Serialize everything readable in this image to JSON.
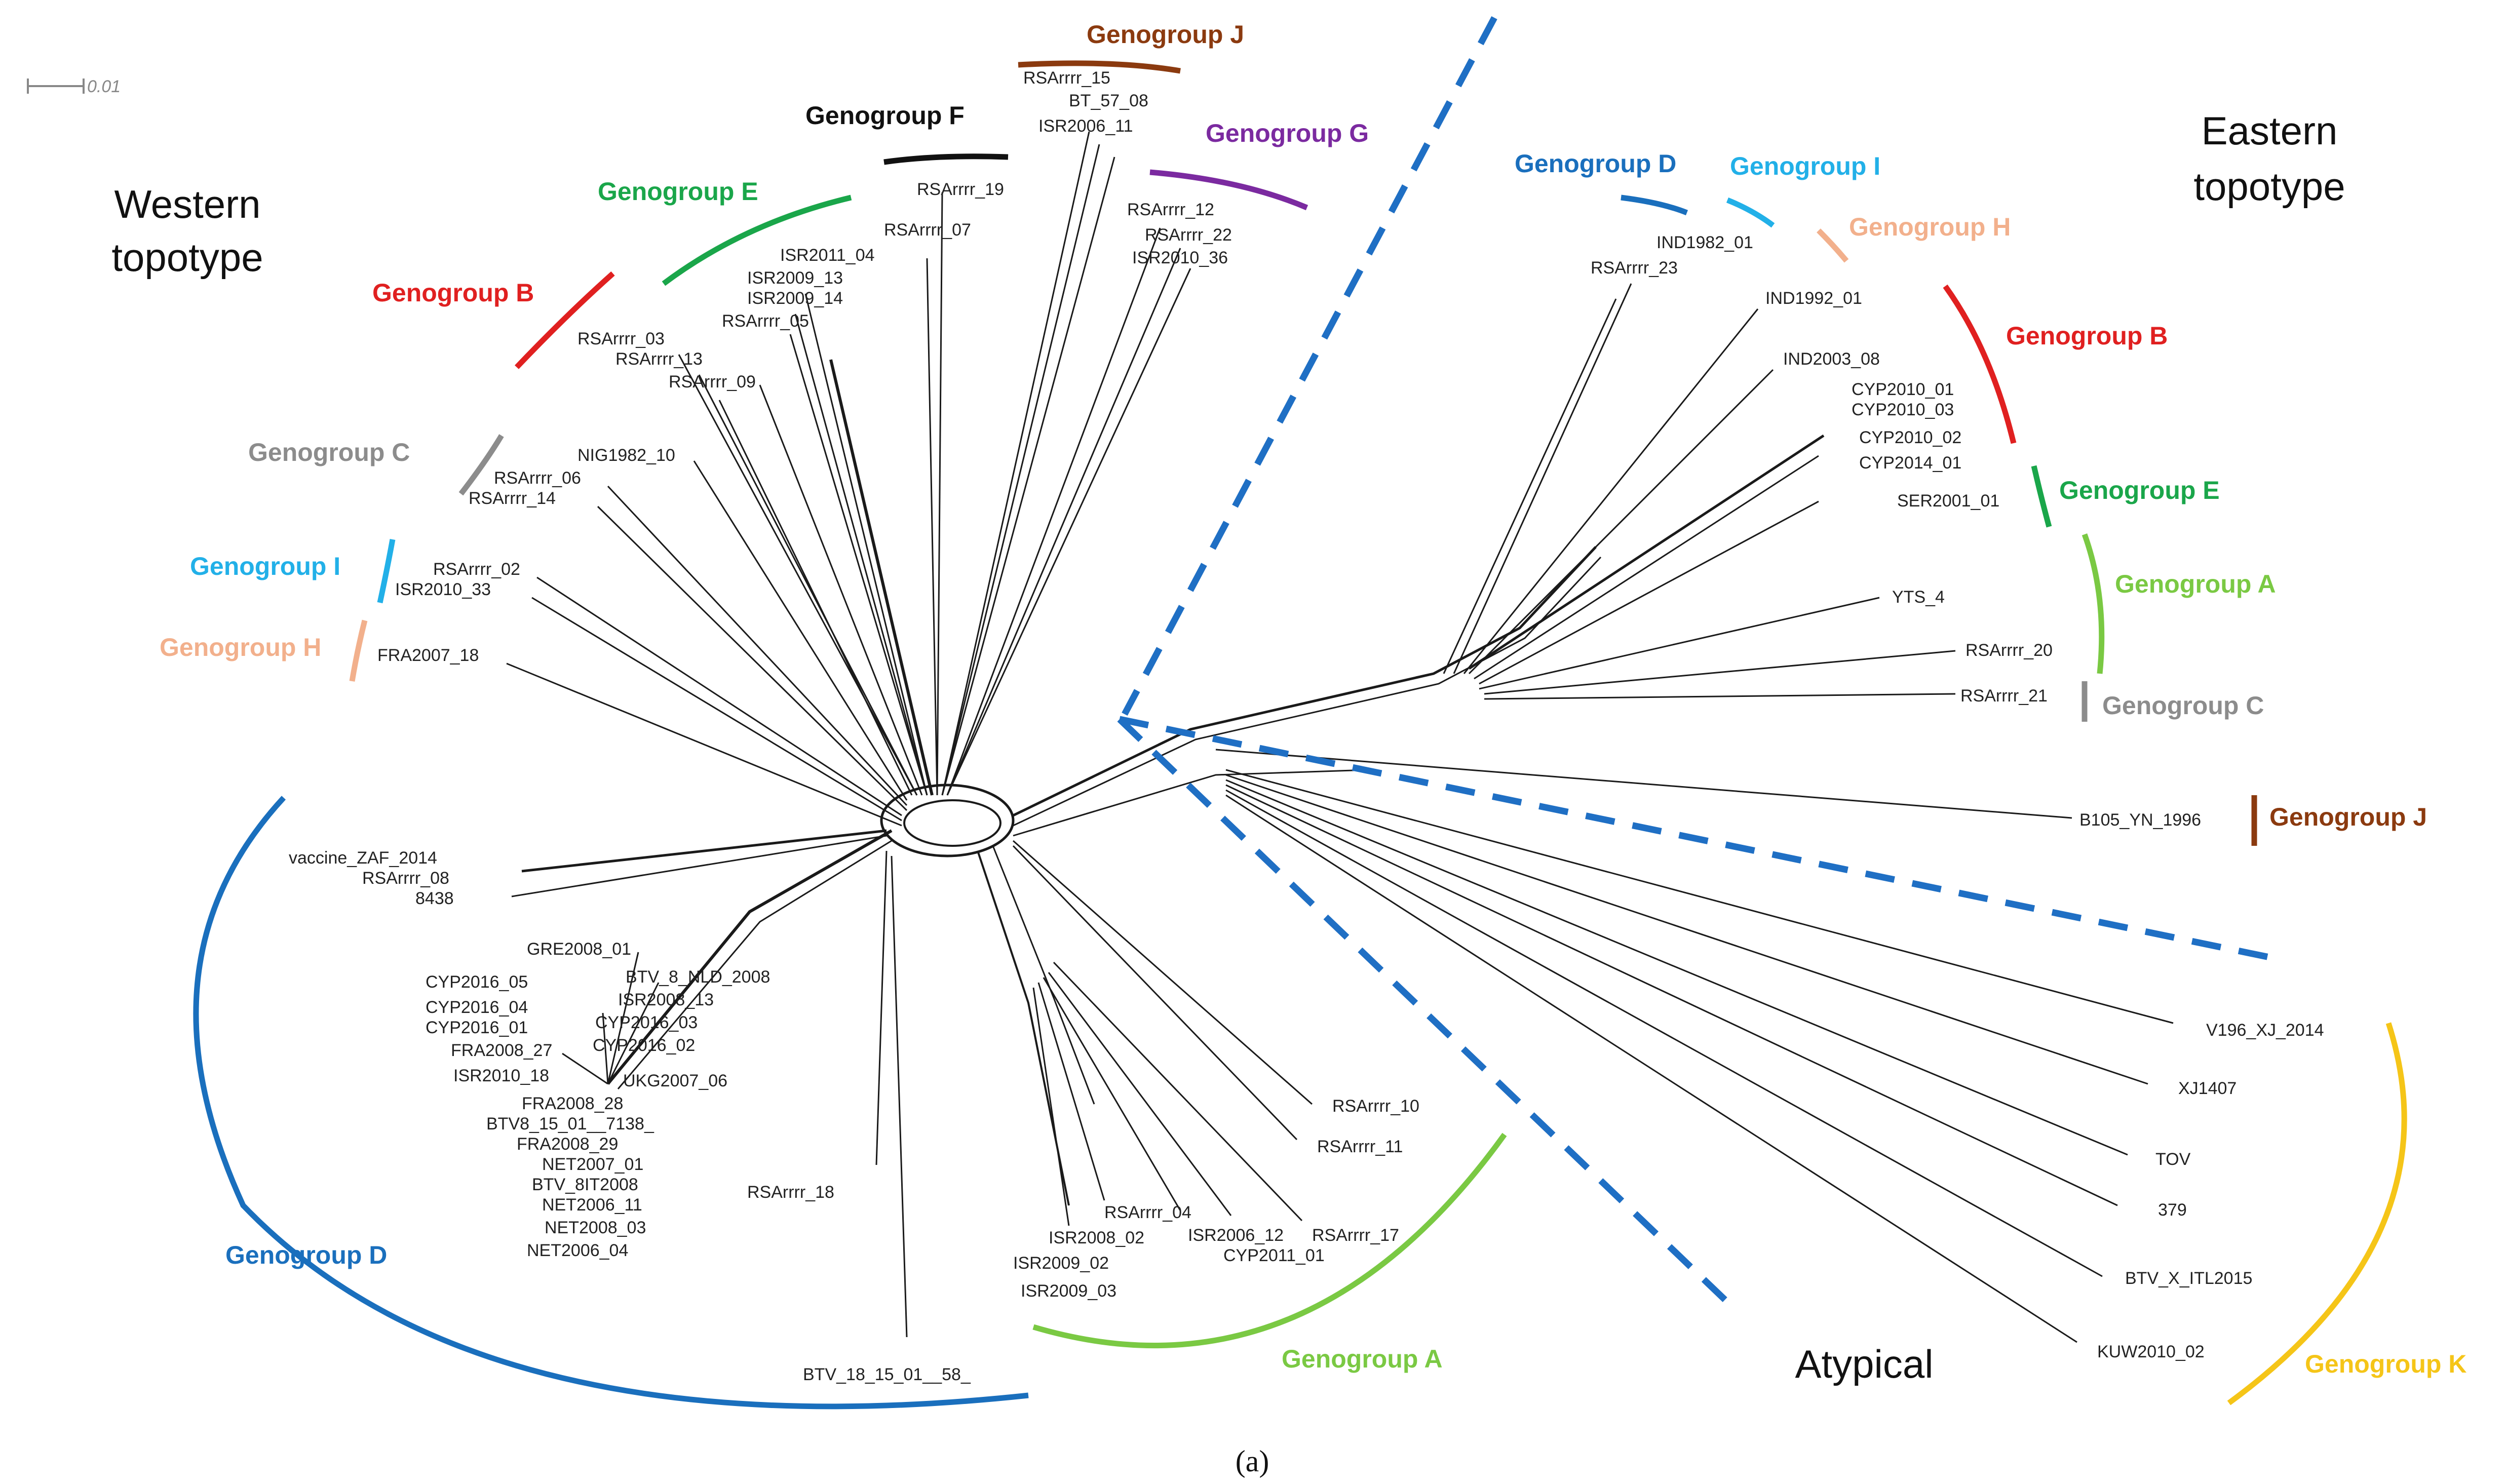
{
  "figure": {
    "caption": "(a)",
    "scale_bar_label": "0.01",
    "regions": {
      "western": [
        "Western",
        "topotype"
      ],
      "eastern": [
        "Eastern",
        "topotype"
      ],
      "atypical": "Atypical"
    }
  },
  "colors": {
    "A": "#7ac943",
    "B": "#e02020",
    "C": "#8c8c8c",
    "D": "#1a6fbd",
    "E": "#1aa64a",
    "F": "#111111",
    "G": "#7b2aa0",
    "H": "#f2b08c",
    "I": "#22b0e8",
    "J": "#8b3a0f",
    "K": "#f5c518",
    "divider": "#1f6fc4"
  },
  "genogroups": {
    "west_J": "Genogroup J",
    "west_F": "Genogroup F",
    "west_G": "Genogroup G",
    "west_E": "Genogroup E",
    "west_B": "Genogroup B",
    "west_C": "Genogroup C",
    "west_I": "Genogroup I",
    "west_H": "Genogroup H",
    "west_D": "Genogroup D",
    "west_A": "Genogroup A",
    "east_D": "Genogroup D",
    "east_I": "Genogroup I",
    "east_H": "Genogroup H",
    "east_B": "Genogroup B",
    "east_E": "Genogroup E",
    "east_A": "Genogroup A",
    "east_C": "Genogroup C",
    "east_J": "Genogroup J",
    "atyp_K": "Genogroup K"
  },
  "taxa": {
    "western_north": [
      "RSArrrr_15",
      "BT_57_08",
      "ISR2006_11",
      "RSArrrr_19",
      "RSArrrr_07",
      "RSArrrr_12",
      "RSArrrr_22",
      "ISR2010_36",
      "ISR2011_04",
      "ISR2009_13",
      "ISR2009_14",
      "RSArrrr_05",
      "RSArrrr_03",
      "RSArrrr_13",
      "RSArrrr_09",
      "NIG1982_10",
      "RSArrrr_06",
      "RSArrrr_14",
      "RSArrrr_02",
      "ISR2010_33",
      "FRA2007_18"
    ],
    "western_south": [
      "vaccine_ZAF_2014",
      "RSArrrr_08",
      "8438",
      "GRE2008_01",
      "CYP2016_05",
      "BTV_8_NLD_2008",
      "ISR2008_13",
      "CYP2016_04",
      "CYP2016_03",
      "CYP2016_01",
      "CYP2016_02",
      "FRA2008_27",
      "ISR2010_18",
      "UKG2007_06",
      "FRA2008_28",
      "BTV8_15_01__7138_",
      "FRA2008_29",
      "NET2007_01",
      "BTV_8IT2008",
      "NET2006_11",
      "NET2008_03",
      "NET2006_04",
      "RSArrrr_18",
      "BTV_18_15_01__58_",
      "RSArrrr_10",
      "RSArrrr_11",
      "RSArrrr_04",
      "ISR2008_02",
      "ISR2006_12",
      "RSArrrr_17",
      "ISR2009_02",
      "CYP2011_01",
      "ISR2009_03"
    ],
    "eastern": [
      "IND1982_01",
      "RSArrrr_23",
      "IND1992_01",
      "IND2003_08",
      "CYP2010_01",
      "CYP2010_03",
      "CYP2010_02",
      "CYP2014_01",
      "SER2001_01",
      "YTS_4",
      "RSArrrr_20",
      "RSArrrr_21",
      "B105_YN_1996"
    ],
    "atypical": [
      "V196_XJ_2014",
      "XJ1407",
      "TOV",
      "379",
      "BTV_X_ITL2015",
      "KUW2010_02"
    ]
  }
}
